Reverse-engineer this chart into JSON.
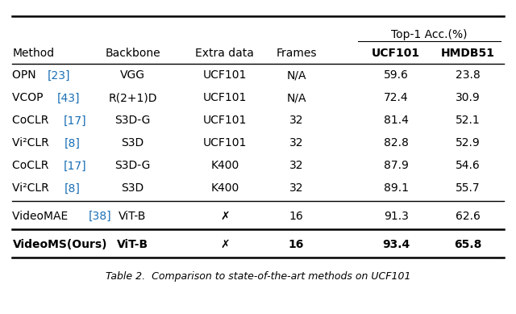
{
  "title": "Table 2.  Comparison to state-of-the-art methods on UCF101",
  "rows": [
    {
      "method": "OPN ",
      "ref": "[23]",
      "backbone": "VGG",
      "extra": "UCF101",
      "frames": "N/A",
      "ucf": "59.6",
      "hmdb": "23.8",
      "bold": false
    },
    {
      "method": "VCOP ",
      "ref": "[43]",
      "backbone": "R(2+1)D",
      "extra": "UCF101",
      "frames": "N/A",
      "ucf": "72.4",
      "hmdb": "30.9",
      "bold": false
    },
    {
      "method": "CoCLR ",
      "ref": "[17]",
      "backbone": "S3D-G",
      "extra": "UCF101",
      "frames": "32",
      "ucf": "81.4",
      "hmdb": "52.1",
      "bold": false
    },
    {
      "method": "Vi²CLR ",
      "ref": "[8]",
      "backbone": "S3D",
      "extra": "UCF101",
      "frames": "32",
      "ucf": "82.8",
      "hmdb": "52.9",
      "bold": false
    },
    {
      "method": "CoCLR ",
      "ref": "[17]",
      "backbone": "S3D-G",
      "extra": "K400",
      "frames": "32",
      "ucf": "87.9",
      "hmdb": "54.6",
      "bold": false
    },
    {
      "method": "Vi²CLR ",
      "ref": "[8]",
      "backbone": "S3D",
      "extra": "K400",
      "frames": "32",
      "ucf": "89.1",
      "hmdb": "55.7",
      "bold": false
    },
    {
      "method": "VideoMAE ",
      "ref": "[38]",
      "backbone": "ViT-B",
      "extra": "✗",
      "frames": "16",
      "ucf": "91.3",
      "hmdb": "62.6",
      "bold": false
    },
    {
      "method": "VideoMS(Ours)",
      "ref": "",
      "backbone": "ViT-B",
      "extra": "✗",
      "frames": "16",
      "ucf": "93.4",
      "hmdb": "65.8",
      "bold": true
    }
  ],
  "bg_color": "#ffffff",
  "text_color": "#000000",
  "ref_color": "#1a6fb5",
  "fig_width": 6.4,
  "fig_height": 3.89,
  "dpi": 100
}
